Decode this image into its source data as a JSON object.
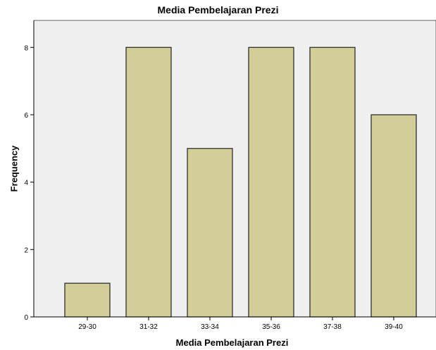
{
  "chart_data": {
    "type": "bar",
    "title": "Media Pembelajaran Prezi",
    "xlabel": "Media Pembelajaran Prezi",
    "ylabel": "Frequency",
    "categories": [
      "29-30",
      "31-32",
      "33-34",
      "35-36",
      "37-38",
      "39-40"
    ],
    "values": [
      1,
      8,
      5,
      8,
      8,
      6
    ],
    "ylim": [
      0,
      8.8
    ],
    "yticks": [
      0,
      2,
      4,
      6,
      8
    ],
    "grid": false,
    "colors": {
      "plot_background": "#f0f0f0",
      "bar_fill": "#d3ce97",
      "bar_stroke": "#222222"
    }
  }
}
